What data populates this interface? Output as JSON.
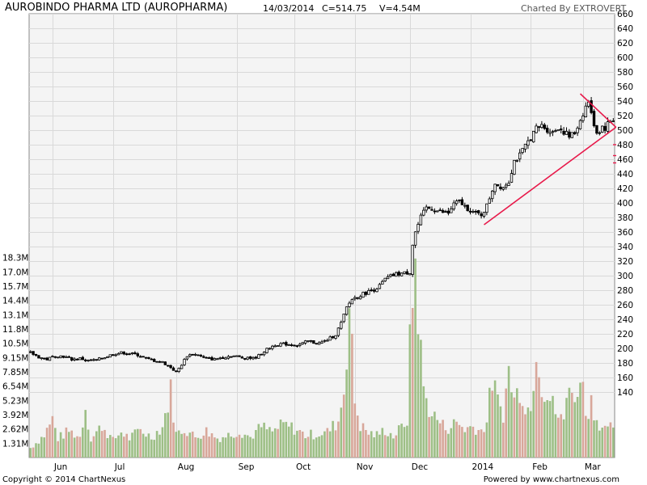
{
  "header": {
    "title": "AUROBINDO PHARMA LTD (AUROPHARMA)",
    "date": "14/03/2014",
    "close": "C=514.75",
    "volume": "V=4.54M",
    "charted_by": "Charted By EXTROVERT"
  },
  "footer": {
    "copyright": "Copyright © 2014 ChartNexus",
    "powered": "Powered by www.chartnexus.com"
  },
  "colors": {
    "candle": "#000000",
    "volume_up": "#9dbf86",
    "volume_down": "#d8a79a",
    "trendline": "#e8194a",
    "grid": "#d9d9d9",
    "plot_border": "#888888"
  },
  "chart_data": {
    "type": "candlestick",
    "price_axis": {
      "range": [
        130,
        660
      ],
      "ticks": [
        140,
        160,
        180,
        200,
        220,
        240,
        260,
        280,
        300,
        320,
        340,
        360,
        380,
        400,
        420,
        440,
        460,
        480,
        500,
        520,
        540,
        560,
        580,
        600,
        620,
        640,
        660
      ]
    },
    "volume_axis": {
      "range": [
        0,
        19.6
      ],
      "tick_labels": [
        "1.31M",
        "2.62M",
        "3.92M",
        "5.23M",
        "6.54M",
        "7.85M",
        "9.15M",
        "10.5M",
        "11.8M",
        "13.1M",
        "14.4M",
        "15.7M",
        "17.0M",
        "18.3M"
      ],
      "tick_values": [
        1.31,
        2.62,
        3.92,
        5.23,
        6.54,
        7.85,
        9.15,
        10.46,
        11.77,
        13.07,
        14.38,
        15.69,
        16.99,
        18.3
      ]
    },
    "x_axis": {
      "labels": [
        {
          "label": "Jun",
          "day": 8
        },
        {
          "label": "Jul",
          "day": 30
        },
        {
          "label": "Aug",
          "day": 53
        },
        {
          "label": "Sep",
          "day": 75
        },
        {
          "label": "Oct",
          "day": 96
        },
        {
          "label": "Nov",
          "day": 118
        },
        {
          "label": "Dec",
          "day": 138
        },
        {
          "label": "2014",
          "day": 160
        },
        {
          "label": "Feb",
          "day": 182
        },
        {
          "label": "Mar",
          "day": 201
        }
      ],
      "total_days": 213
    },
    "price_anchors": [
      [
        0,
        194
      ],
      [
        3,
        188
      ],
      [
        6,
        185
      ],
      [
        9,
        190
      ],
      [
        12,
        189
      ],
      [
        15,
        185
      ],
      [
        18,
        186
      ],
      [
        21,
        183
      ],
      [
        24,
        184
      ],
      [
        27,
        188
      ],
      [
        30,
        192
      ],
      [
        33,
        194
      ],
      [
        36,
        193
      ],
      [
        39,
        191
      ],
      [
        42,
        186
      ],
      [
        45,
        183
      ],
      [
        48,
        181
      ],
      [
        51,
        174
      ],
      [
        53,
        167
      ],
      [
        55,
        178
      ],
      [
        57,
        190
      ],
      [
        59,
        192
      ],
      [
        61,
        191
      ],
      [
        63,
        187
      ],
      [
        65,
        186
      ],
      [
        67,
        185
      ],
      [
        69,
        187
      ],
      [
        71,
        188
      ],
      [
        73,
        190
      ],
      [
        75,
        189
      ],
      [
        77,
        187
      ],
      [
        79,
        188
      ],
      [
        81,
        186
      ],
      [
        83,
        190
      ],
      [
        85,
        196
      ],
      [
        87,
        201
      ],
      [
        89,
        205
      ],
      [
        91,
        206
      ],
      [
        93,
        206
      ],
      [
        95,
        205
      ],
      [
        97,
        204
      ],
      [
        99,
        207
      ],
      [
        101,
        210
      ],
      [
        103,
        208
      ],
      [
        105,
        207
      ],
      [
        107,
        210
      ],
      [
        109,
        214
      ],
      [
        111,
        219
      ],
      [
        113,
        235
      ],
      [
        115,
        256
      ],
      [
        117,
        268
      ],
      [
        119,
        271
      ],
      [
        121,
        275
      ],
      [
        123,
        278
      ],
      [
        125,
        281
      ],
      [
        127,
        286
      ],
      [
        129,
        295
      ],
      [
        131,
        299
      ],
      [
        133,
        302
      ],
      [
        135,
        303
      ],
      [
        137,
        304
      ],
      [
        138,
        305
      ],
      [
        139,
        343
      ],
      [
        140,
        360
      ],
      [
        142,
        380
      ],
      [
        144,
        393
      ],
      [
        146,
        392
      ],
      [
        148,
        389
      ],
      [
        150,
        387
      ],
      [
        152,
        386
      ],
      [
        154,
        398
      ],
      [
        156,
        402
      ],
      [
        158,
        395
      ],
      [
        160,
        390
      ],
      [
        162,
        385
      ],
      [
        164,
        384
      ],
      [
        166,
        396
      ],
      [
        168,
        418
      ],
      [
        169,
        428
      ],
      [
        170,
        424
      ],
      [
        172,
        422
      ],
      [
        174,
        430
      ],
      [
        176,
        458
      ],
      [
        178,
        465
      ],
      [
        180,
        478
      ],
      [
        182,
        490
      ],
      [
        184,
        502
      ],
      [
        186,
        506
      ],
      [
        188,
        501
      ],
      [
        190,
        497
      ],
      [
        192,
        504
      ],
      [
        194,
        498
      ],
      [
        196,
        491
      ],
      [
        198,
        496
      ],
      [
        200,
        514
      ],
      [
        202,
        532
      ],
      [
        203,
        540
      ],
      [
        204,
        521
      ],
      [
        205,
        509
      ],
      [
        206,
        497
      ],
      [
        207,
        499
      ],
      [
        208,
        505
      ],
      [
        209,
        503
      ],
      [
        210,
        509
      ],
      [
        211,
        512
      ],
      [
        212,
        515
      ]
    ],
    "volume_anchors": [
      [
        0,
        0.9
      ],
      [
        5,
        2.1
      ],
      [
        8,
        3.6
      ],
      [
        10,
        1.8
      ],
      [
        14,
        2.5
      ],
      [
        18,
        1.9
      ],
      [
        20,
        4.8
      ],
      [
        22,
        1.7
      ],
      [
        26,
        3.0
      ],
      [
        30,
        1.6
      ],
      [
        33,
        2.4
      ],
      [
        36,
        1.8
      ],
      [
        40,
        2.6
      ],
      [
        44,
        1.9
      ],
      [
        48,
        2.9
      ],
      [
        51,
        6.2
      ],
      [
        53,
        2.2
      ],
      [
        56,
        2.7
      ],
      [
        60,
        1.9
      ],
      [
        64,
        2.5
      ],
      [
        68,
        1.8
      ],
      [
        72,
        2.1
      ],
      [
        76,
        2.5
      ],
      [
        80,
        1.9
      ],
      [
        84,
        2.9
      ],
      [
        88,
        2.4
      ],
      [
        92,
        3.1
      ],
      [
        96,
        2.7
      ],
      [
        100,
        2.1
      ],
      [
        104,
        2.2
      ],
      [
        108,
        2.4
      ],
      [
        112,
        3.4
      ],
      [
        114,
        6.4
      ],
      [
        116,
        14.3
      ],
      [
        118,
        5.3
      ],
      [
        120,
        3.0
      ],
      [
        123,
        2.3
      ],
      [
        126,
        2.1
      ],
      [
        129,
        2.6
      ],
      [
        132,
        2.0
      ],
      [
        135,
        2.8
      ],
      [
        137,
        3.6
      ],
      [
        138,
        10.3
      ],
      [
        139,
        15.2
      ],
      [
        140,
        18.2
      ],
      [
        141,
        14.0
      ],
      [
        142,
        9.6
      ],
      [
        143,
        6.6
      ],
      [
        144,
        5.3
      ],
      [
        146,
        4.1
      ],
      [
        148,
        3.6
      ],
      [
        150,
        3.0
      ],
      [
        152,
        2.8
      ],
      [
        155,
        3.3
      ],
      [
        158,
        2.7
      ],
      [
        161,
        2.9
      ],
      [
        164,
        2.5
      ],
      [
        166,
        3.4
      ],
      [
        168,
        7.4
      ],
      [
        170,
        5.1
      ],
      [
        172,
        4.2
      ],
      [
        174,
        8.1
      ],
      [
        176,
        5.4
      ],
      [
        178,
        6.6
      ],
      [
        180,
        5.1
      ],
      [
        182,
        4.3
      ],
      [
        184,
        11.1
      ],
      [
        186,
        6.9
      ],
      [
        188,
        5.9
      ],
      [
        190,
        4.9
      ],
      [
        192,
        3.8
      ],
      [
        194,
        3.4
      ],
      [
        196,
        8.0
      ],
      [
        198,
        4.6
      ],
      [
        200,
        8.6
      ],
      [
        202,
        4.1
      ],
      [
        204,
        5.3
      ],
      [
        206,
        3.6
      ],
      [
        208,
        2.9
      ],
      [
        210,
        2.4
      ],
      [
        212,
        3.1
      ]
    ],
    "trendlines": [
      {
        "from_day": 165,
        "from_price": 370,
        "to_day": 213,
        "to_price": 504
      },
      {
        "from_day": 200,
        "from_price": 550,
        "to_day": 213,
        "to_price": 504
      }
    ],
    "xlabel": "",
    "ylabel": ""
  }
}
